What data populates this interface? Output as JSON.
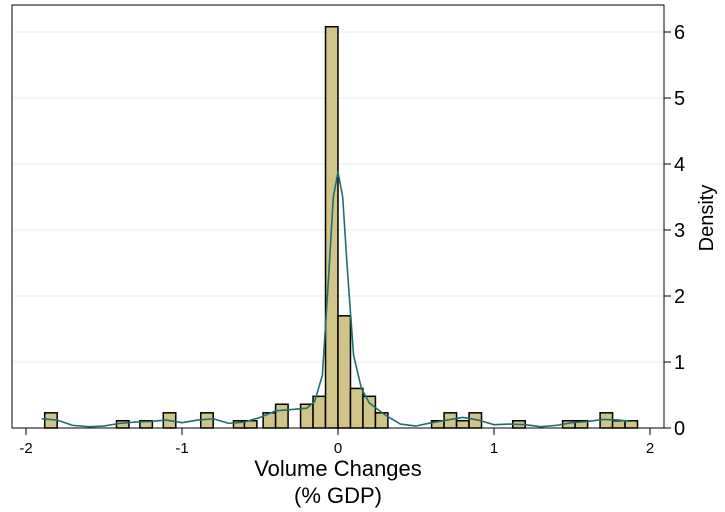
{
  "chart_data": {
    "type": "bar",
    "title": "",
    "xlabel": "Volume Changes",
    "xlabel_line2": "(% GDP)",
    "ylabel": "Density",
    "xlim": [
      -2,
      2
    ],
    "ylim": [
      0,
      6.1
    ],
    "x_ticks": [
      -2,
      -1,
      0,
      1,
      2
    ],
    "y_ticks": [
      0,
      1,
      2,
      3,
      4,
      5,
      6
    ],
    "grid": true,
    "y_axis_side": "right",
    "bin_width": 0.08,
    "bins": [
      {
        "x": -1.84,
        "density": 0.23
      },
      {
        "x": -1.38,
        "density": 0.11
      },
      {
        "x": -1.23,
        "density": 0.11
      },
      {
        "x": -1.08,
        "density": 0.23
      },
      {
        "x": -0.84,
        "density": 0.23
      },
      {
        "x": -0.63,
        "density": 0.11
      },
      {
        "x": -0.56,
        "density": 0.11
      },
      {
        "x": -0.44,
        "density": 0.23
      },
      {
        "x": -0.36,
        "density": 0.36
      },
      {
        "x": -0.2,
        "density": 0.36
      },
      {
        "x": -0.12,
        "density": 0.48
      },
      {
        "x": -0.04,
        "density": 6.08
      },
      {
        "x": 0.04,
        "density": 1.7
      },
      {
        "x": 0.12,
        "density": 0.6
      },
      {
        "x": 0.2,
        "density": 0.48
      },
      {
        "x": 0.28,
        "density": 0.23
      },
      {
        "x": 0.64,
        "density": 0.11
      },
      {
        "x": 0.72,
        "density": 0.23
      },
      {
        "x": 0.8,
        "density": 0.11
      },
      {
        "x": 0.88,
        "density": 0.23
      },
      {
        "x": 1.16,
        "density": 0.11
      },
      {
        "x": 1.48,
        "density": 0.11
      },
      {
        "x": 1.56,
        "density": 0.11
      },
      {
        "x": 1.72,
        "density": 0.23
      },
      {
        "x": 1.8,
        "density": 0.11
      },
      {
        "x": 1.88,
        "density": 0.11
      }
    ],
    "kde": {
      "x": [
        -1.9,
        -1.8,
        -1.7,
        -1.6,
        -1.5,
        -1.4,
        -1.3,
        -1.2,
        -1.1,
        -1.0,
        -0.9,
        -0.8,
        -0.7,
        -0.6,
        -0.5,
        -0.4,
        -0.3,
        -0.2,
        -0.15,
        -0.1,
        -0.06,
        -0.03,
        0.0,
        0.03,
        0.06,
        0.1,
        0.15,
        0.2,
        0.3,
        0.4,
        0.5,
        0.6,
        0.7,
        0.8,
        0.9,
        1.0,
        1.1,
        1.2,
        1.3,
        1.4,
        1.5,
        1.6,
        1.7,
        1.8,
        1.88
      ],
      "y": [
        0.14,
        0.12,
        0.04,
        0.02,
        0.03,
        0.07,
        0.09,
        0.1,
        0.12,
        0.08,
        0.12,
        0.14,
        0.07,
        0.09,
        0.16,
        0.26,
        0.28,
        0.3,
        0.4,
        0.8,
        2.3,
        3.5,
        3.88,
        3.5,
        2.4,
        1.1,
        0.6,
        0.38,
        0.2,
        0.06,
        0.03,
        0.08,
        0.12,
        0.16,
        0.12,
        0.05,
        0.06,
        0.05,
        0.02,
        0.04,
        0.08,
        0.1,
        0.13,
        0.12,
        0.1
      ]
    },
    "colors": {
      "bar_fill": "#d0c489",
      "bar_edge": "#000000",
      "kde_line": "#1f6f6b",
      "grid": "#e4ecf2",
      "axis": "#000000"
    }
  }
}
